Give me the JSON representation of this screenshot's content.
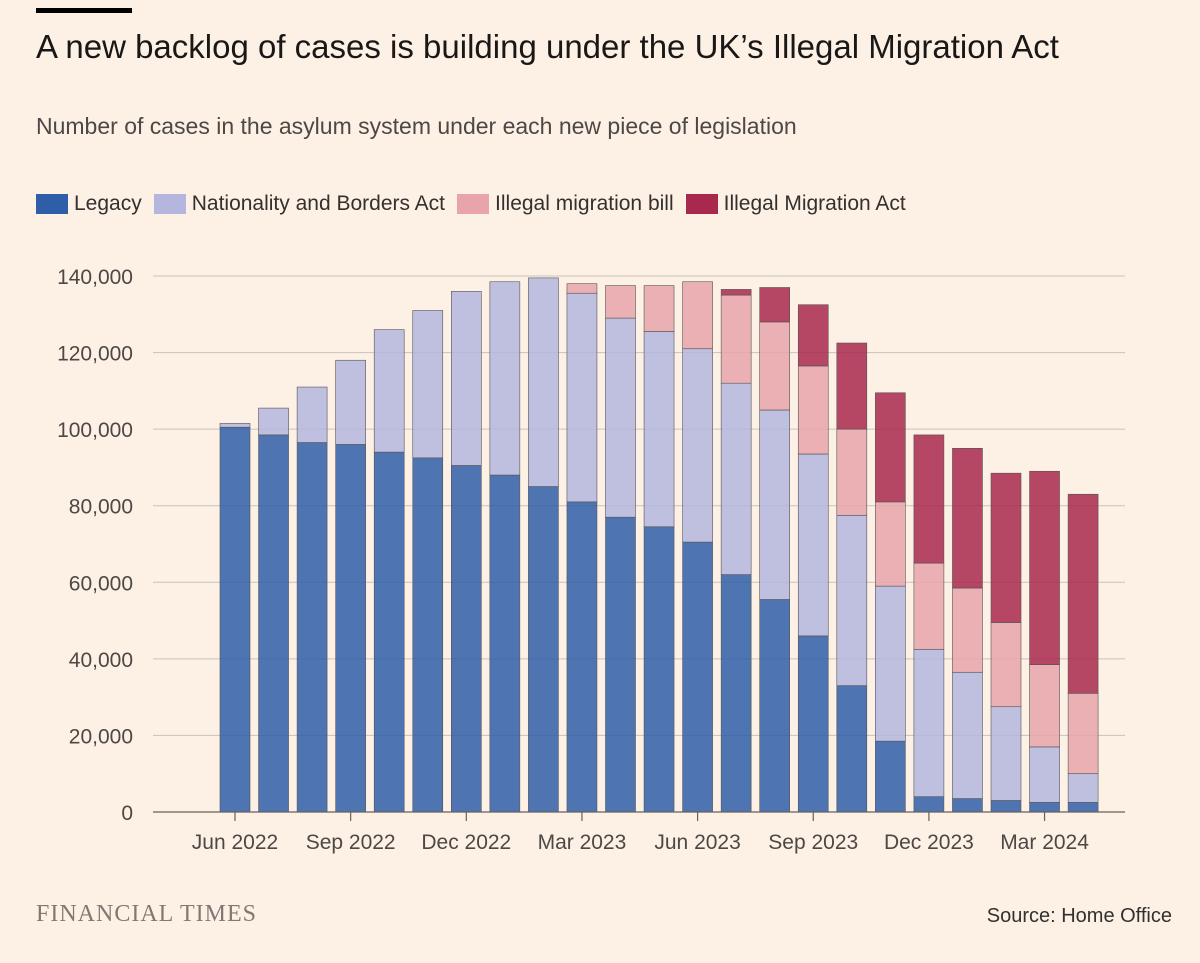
{
  "header": {
    "title": "A new backlog of cases is building under the UK’s Illegal Migration Act",
    "subtitle": "Number of cases in the asylum system under each new piece of legislation"
  },
  "legend": [
    {
      "label": "Legacy",
      "color": "#2f5ea8"
    },
    {
      "label": "Nationality and Borders Act",
      "color": "#b4b6de"
    },
    {
      "label": "Illegal migration bill",
      "color": "#e8a4aa"
    },
    {
      "label": "Illegal Migration Act",
      "color": "#a8284e"
    }
  ],
  "footer": {
    "brand": "FINANCIAL TIMES",
    "source": "Source: Home Office"
  },
  "chart_data": {
    "type": "bar",
    "stacked": true,
    "title": "A new backlog of cases is building under the UK’s Illegal Migration Act",
    "subtitle": "Number of cases in the asylum system under each new piece of legislation",
    "categories": [
      "Jun 2022",
      "Jul 2022",
      "Aug 2022",
      "Sep 2022",
      "Oct 2022",
      "Nov 2022",
      "Dec 2022",
      "Jan 2023",
      "Feb 2023",
      "Mar 2023",
      "Apr 2023",
      "May 2023",
      "Jun 2023",
      "Jul 2023",
      "Aug 2023",
      "Sep 2023",
      "Oct 2023",
      "Nov 2023",
      "Dec 2023",
      "Jan 2024",
      "Feb 2024",
      "Mar 2024",
      "Apr 2024"
    ],
    "x_tick_labels": [
      {
        "label": "Jun 2022",
        "index": 0
      },
      {
        "label": "Sep 2022",
        "index": 3
      },
      {
        "label": "Dec 2022",
        "index": 6
      },
      {
        "label": "Mar 2023",
        "index": 9
      },
      {
        "label": "Jun 2023",
        "index": 12
      },
      {
        "label": "Sep 2023",
        "index": 15
      },
      {
        "label": "Dec 2023",
        "index": 18
      },
      {
        "label": "Mar 2024",
        "index": 21
      }
    ],
    "series": [
      {
        "name": "Legacy",
        "color": "#2f5ea8",
        "values": [
          100500,
          98500,
          96500,
          96000,
          94000,
          92500,
          90500,
          88000,
          85000,
          81000,
          77000,
          74500,
          70500,
          62000,
          55500,
          46000,
          33000,
          18500,
          4000,
          3500,
          3000,
          2500,
          2500
        ]
      },
      {
        "name": "Nationality and Borders Act",
        "color": "#b4b6de",
        "values": [
          1000,
          7000,
          14500,
          22000,
          32000,
          38500,
          45500,
          50500,
          54500,
          54500,
          52000,
          51000,
          50500,
          50000,
          49500,
          47500,
          44500,
          40500,
          38500,
          33000,
          24500,
          14500,
          7500
        ]
      },
      {
        "name": "Illegal migration bill",
        "color": "#e8a4aa",
        "values": [
          0,
          0,
          0,
          0,
          0,
          0,
          0,
          0,
          0,
          2500,
          8500,
          12000,
          17500,
          23000,
          23000,
          23000,
          22500,
          22000,
          22500,
          22000,
          22000,
          21500,
          21000
        ]
      },
      {
        "name": "Illegal Migration Act",
        "color": "#a8284e",
        "values": [
          0,
          0,
          0,
          0,
          0,
          0,
          0,
          0,
          0,
          0,
          0,
          0,
          0,
          1500,
          9000,
          16000,
          22500,
          28500,
          33500,
          36500,
          39000,
          50500,
          52000
        ]
      }
    ],
    "ylim": [
      0,
      140000
    ],
    "yticks": [
      0,
      20000,
      40000,
      60000,
      80000,
      100000,
      120000,
      140000
    ],
    "ytick_labels": [
      "0",
      "20,000",
      "40,000",
      "60,000",
      "80,000",
      "100,000",
      "120,000",
      "140,000"
    ],
    "xlabel": "",
    "ylabel": "",
    "grid": true,
    "legend_position": "top-left"
  }
}
